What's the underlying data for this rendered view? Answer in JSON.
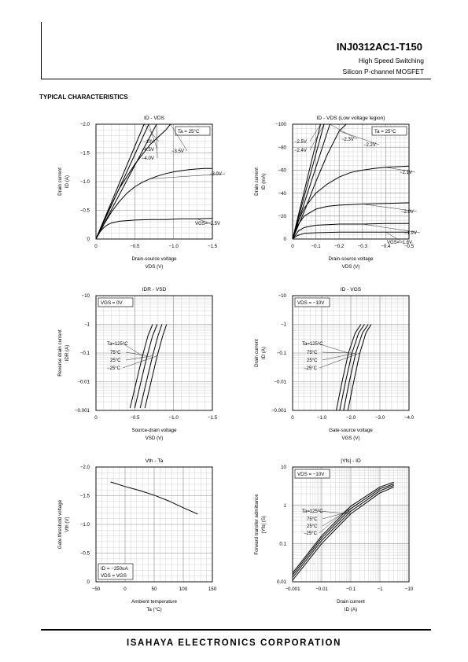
{
  "header": {
    "part_number": "INJ0312AC1-T150",
    "subtitle_1": "High Speed Switching",
    "subtitle_2": "Silicon P-channel MOSFET"
  },
  "section_title": "TYPICAL CHARACTERISTICS",
  "footer": {
    "company": "ISAHAYA ELECTRONICS CORPORATION"
  },
  "chart_data": [
    {
      "id": "c1",
      "type": "line",
      "title": "ID - VDS",
      "xlabel": "Drain-source voltage",
      "xunit": "VDS (V)",
      "ylabel": "Drain current",
      "yunit": "ID (A)",
      "xlim": [
        0,
        -1.5
      ],
      "ylim": [
        0,
        -2.0
      ],
      "grid": true,
      "xticks": [
        0,
        -0.5,
        -1.0,
        -1.5
      ],
      "xtick_labels": [
        "0",
        "−0.5",
        "−1.0",
        "−1.5"
      ],
      "yticks": [
        0,
        -0.5,
        -1.0,
        -1.5,
        -2.0
      ],
      "ytick_labels": [
        "0",
        "−0.5",
        "−1.0",
        "−1.5",
        "−2.0"
      ],
      "annotations": [
        {
          "text": "Ta = 25°C",
          "pos": "top-right"
        }
      ],
      "series": [
        {
          "name": "−10V",
          "x": [
            0,
            -0.62
          ],
          "y": [
            0,
            -2.0
          ]
        },
        {
          "name": "−4.5V",
          "x": [
            0,
            -0.68
          ],
          "y": [
            0,
            -2.0
          ]
        },
        {
          "name": "−4.0V",
          "x": [
            0,
            -0.78
          ],
          "y": [
            0,
            -2.0
          ]
        },
        {
          "name": "−3.5V",
          "x": [
            0,
            -0.1,
            -0.3,
            -0.5,
            -0.7,
            -0.9,
            -0.96
          ],
          "y": [
            0,
            -0.32,
            -0.88,
            -1.3,
            -1.65,
            -1.9,
            -2.0
          ]
        },
        {
          "name": "−3.0V",
          "x": [
            0,
            -0.1,
            -0.2,
            -0.3,
            -0.4,
            -0.5,
            -0.6,
            -0.7,
            -0.8,
            -0.9,
            -1.0,
            -1.1,
            -1.2,
            -1.3,
            -1.4,
            -1.5
          ],
          "y": [
            0,
            -0.25,
            -0.47,
            -0.65,
            -0.8,
            -0.91,
            -0.99,
            -1.05,
            -1.1,
            -1.14,
            -1.17,
            -1.19,
            -1.21,
            -1.22,
            -1.23,
            -1.23
          ]
        },
        {
          "name": "VGS=−2.5V",
          "x": [
            0,
            -0.05,
            -0.1,
            -0.15,
            -0.2,
            -0.3,
            -0.4,
            -0.5,
            -0.7,
            -0.9,
            -1.1,
            -1.3,
            -1.5
          ],
          "y": [
            0,
            -0.12,
            -0.2,
            -0.25,
            -0.28,
            -0.31,
            -0.32,
            -0.33,
            -0.34,
            -0.34,
            -0.35,
            -0.35,
            -0.36
          ]
        }
      ]
    },
    {
      "id": "c2",
      "type": "line",
      "title": "ID - VDS (Low voltage legion)",
      "xlabel": "Drain-source voltage",
      "xunit": "VDS (V)",
      "ylabel": "Drain current",
      "yunit": "ID (mA)",
      "xlim": [
        0,
        -0.5
      ],
      "ylim": [
        0,
        -100
      ],
      "grid": true,
      "xticks": [
        0,
        -0.1,
        -0.2,
        -0.3,
        -0.4,
        -0.5
      ],
      "xtick_labels": [
        "0",
        "−0.1",
        "−0.2",
        "−0.3",
        "−0.4",
        "−0.5"
      ],
      "yticks": [
        0,
        -20,
        -40,
        -60,
        -80,
        -100
      ],
      "ytick_labels": [
        "0",
        "−20",
        "−40",
        "−60",
        "−80",
        "−100"
      ],
      "annotations": [
        {
          "text": "Ta = 25°C",
          "pos": "top-right"
        }
      ],
      "series": [
        {
          "name": "−2.5V",
          "x": [
            0,
            -0.12
          ],
          "y": [
            0,
            -100
          ]
        },
        {
          "name": "−2.4V",
          "x": [
            0,
            -0.135
          ],
          "y": [
            0,
            -100
          ]
        },
        {
          "name": "−2.3V",
          "x": [
            0,
            -0.16
          ],
          "y": [
            0,
            -100
          ]
        },
        {
          "name": "−2.2V",
          "x": [
            0,
            -0.05,
            -0.1,
            -0.15,
            -0.2,
            -0.23
          ],
          "y": [
            0,
            -24,
            -50,
            -74,
            -94,
            -100
          ]
        },
        {
          "name": "−2.1V",
          "x": [
            0,
            -0.025,
            -0.05,
            -0.1,
            -0.15,
            -0.2,
            -0.25,
            -0.3,
            -0.35,
            -0.4,
            -0.45,
            -0.5
          ],
          "y": [
            0,
            -16,
            -27,
            -40,
            -48,
            -54,
            -58,
            -60,
            -61.5,
            -62.5,
            -63,
            -63.5
          ]
        },
        {
          "name": "−2.0V",
          "x": [
            0,
            -0.025,
            -0.05,
            -0.1,
            -0.15,
            -0.2,
            -0.25,
            -0.3,
            -0.4,
            -0.5
          ],
          "y": [
            0,
            -13,
            -20,
            -26,
            -28.5,
            -29.5,
            -30,
            -30.5,
            -31,
            -31.5
          ]
        },
        {
          "name": "−1.9V",
          "x": [
            0,
            -0.025,
            -0.05,
            -0.1,
            -0.15,
            -0.2,
            -0.3,
            -0.4,
            -0.5
          ],
          "y": [
            0,
            -7,
            -10,
            -12,
            -12.5,
            -13,
            -13,
            -13.5,
            -13.5
          ]
        },
        {
          "name": "VGS=−1.8V",
          "x": [
            0,
            -0.02,
            -0.05,
            -0.1,
            -0.2,
            -0.3,
            -0.4,
            -0.5
          ],
          "y": [
            0,
            -3,
            -5,
            -5.5,
            -6,
            -6,
            -6,
            -6
          ]
        }
      ]
    },
    {
      "id": "c3",
      "type": "line",
      "title": "IDR - VSD",
      "xlabel": "Source-drain voltage",
      "xunit": "VSD (V)",
      "ylabel": "Reverse drain current",
      "yunit": "IDR (A)",
      "xlim": [
        0,
        -1.5
      ],
      "ylim": [
        -0.001,
        -10
      ],
      "yscale": "log",
      "grid": true,
      "xticks": [
        0,
        -0.5,
        -1.0,
        -1.5
      ],
      "xtick_labels": [
        "0",
        "−0.5",
        "−1.0",
        "−1.5"
      ],
      "yticks": [
        -0.001,
        -0.01,
        -0.1,
        -1,
        -10
      ],
      "ytick_labels": [
        "−0.001",
        "−0.01",
        "−0.1",
        "−1",
        "−10"
      ],
      "annotations": [
        {
          "text": "VGS = 0V",
          "pos": "top-left"
        }
      ],
      "series": [
        {
          "name": "Ta=125°C",
          "x": [
            -0.44,
            -0.52,
            -0.6,
            -0.67,
            -0.73
          ],
          "y": [
            -0.0012,
            -0.01,
            -0.08,
            -0.4,
            -1.0
          ]
        },
        {
          "name": "75°C",
          "x": [
            -0.5,
            -0.58,
            -0.66,
            -0.73,
            -0.79
          ],
          "y": [
            -0.0012,
            -0.01,
            -0.08,
            -0.4,
            -1.0
          ]
        },
        {
          "name": "25°C",
          "x": [
            -0.57,
            -0.65,
            -0.73,
            -0.8,
            -0.85
          ],
          "y": [
            -0.0012,
            -0.01,
            -0.08,
            -0.4,
            -1.0
          ]
        },
        {
          "name": "−25°C",
          "x": [
            -0.63,
            -0.71,
            -0.79,
            -0.86,
            -0.91
          ],
          "y": [
            -0.0012,
            -0.01,
            -0.08,
            -0.4,
            -1.0
          ]
        }
      ]
    },
    {
      "id": "c4",
      "type": "line",
      "title": "ID - VGS",
      "xlabel": "Gate-source voltage",
      "xunit": "VGS (V)",
      "ylabel": "Drain current",
      "yunit": "ID (A)",
      "xlim": [
        0,
        -4.0
      ],
      "ylim": [
        -0.001,
        -10
      ],
      "yscale": "log",
      "grid": true,
      "xticks": [
        0,
        -1.0,
        -2.0,
        -3.0,
        -4.0
      ],
      "xtick_labels": [
        "0",
        "−1.0",
        "−2.0",
        "−3.0",
        "−4.0"
      ],
      "yticks": [
        -0.001,
        -0.01,
        -0.1,
        -1,
        -10
      ],
      "ytick_labels": [
        "−0.001",
        "−0.01",
        "−0.1",
        "−1",
        "−10"
      ],
      "annotations": [
        {
          "text": "VDS = −10V",
          "pos": "top-left"
        }
      ],
      "series": [
        {
          "name": "Ta=125°C",
          "x": [
            -1.5,
            -1.7,
            -1.92,
            -2.15,
            -2.35
          ],
          "y": [
            -0.001,
            -0.01,
            -0.1,
            -0.5,
            -1.0
          ]
        },
        {
          "name": "75°C",
          "x": [
            -1.62,
            -1.82,
            -2.04,
            -2.27,
            -2.47
          ],
          "y": [
            -0.001,
            -0.01,
            -0.1,
            -0.5,
            -1.0
          ]
        },
        {
          "name": "25°C",
          "x": [
            -1.75,
            -1.95,
            -2.17,
            -2.4,
            -2.6
          ],
          "y": [
            -0.001,
            -0.01,
            -0.1,
            -0.5,
            -1.0
          ]
        },
        {
          "name": "−25°C",
          "x": [
            -1.9,
            -2.1,
            -2.31,
            -2.52,
            -2.7
          ],
          "y": [
            -0.001,
            -0.01,
            -0.1,
            -0.5,
            -1.0
          ]
        }
      ]
    },
    {
      "id": "c5",
      "type": "line",
      "title": "Vth - Ta",
      "xlabel": "Ambient temperature",
      "xunit": "Ta (°C)",
      "ylabel": "Gate threshold voltage",
      "yunit": "Vth (V)",
      "xlim": [
        -50,
        150
      ],
      "ylim": [
        0,
        -2.0
      ],
      "grid": true,
      "xticks": [
        -50,
        0,
        50,
        100,
        150
      ],
      "xtick_labels": [
        "−50",
        "0",
        "50",
        "100",
        "150"
      ],
      "yticks": [
        0,
        -0.5,
        -1.0,
        -1.5,
        -2.0
      ],
      "ytick_labels": [
        "0",
        "−0.5",
        "−1.0",
        "−1.5",
        "−2.0"
      ],
      "annotations": [
        {
          "text": "ID = −250uA",
          "pos": "bottom-left"
        },
        {
          "text": "VDS = VGS",
          "pos": "bottom-left"
        }
      ],
      "series": [
        {
          "x": [
            -25,
            0,
            25,
            50,
            75,
            100,
            125
          ],
          "y": [
            -1.74,
            -1.66,
            -1.59,
            -1.51,
            -1.41,
            -1.29,
            -1.18
          ]
        }
      ]
    },
    {
      "id": "c6",
      "type": "line",
      "title": "|Yfs| - ID",
      "xlabel": "Drain current",
      "xunit": "ID (A)",
      "ylabel": "Forward transfer admittance",
      "yunit": "|Yfs| (S)",
      "xlim": [
        -0.001,
        -10
      ],
      "xscale": "log",
      "ylim": [
        0.01,
        10
      ],
      "yscale": "log",
      "grid": true,
      "xticks": [
        -0.001,
        -0.01,
        -0.1,
        -1,
        -10
      ],
      "xtick_labels": [
        "−0.001",
        "−0.01",
        "−0.1",
        "−1",
        "−10"
      ],
      "yticks": [
        0.01,
        0.1,
        1,
        10
      ],
      "ytick_labels": [
        "0.01",
        "0.1",
        "1",
        "10"
      ],
      "annotations": [
        {
          "text": "VDS = −10V",
          "pos": "top-left"
        }
      ],
      "series": [
        {
          "name": "Ta=125°C",
          "x": [
            -0.001,
            -0.01,
            -0.1,
            -1,
            -3
          ],
          "y": [
            0.011,
            0.1,
            0.6,
            2.1,
            3.0
          ]
        },
        {
          "name": "75°C",
          "x": [
            -0.001,
            -0.01,
            -0.1,
            -1,
            -3
          ],
          "y": [
            0.013,
            0.12,
            0.7,
            2.4,
            3.3
          ]
        },
        {
          "name": "25°C",
          "x": [
            -0.001,
            -0.01,
            -0.1,
            -1,
            -3
          ],
          "y": [
            0.015,
            0.14,
            0.82,
            2.7,
            3.6
          ]
        },
        {
          "name": "−25°C",
          "x": [
            -0.001,
            -0.01,
            -0.1,
            -1,
            -3
          ],
          "y": [
            0.017,
            0.16,
            0.95,
            3.0,
            4.0
          ]
        }
      ]
    }
  ]
}
